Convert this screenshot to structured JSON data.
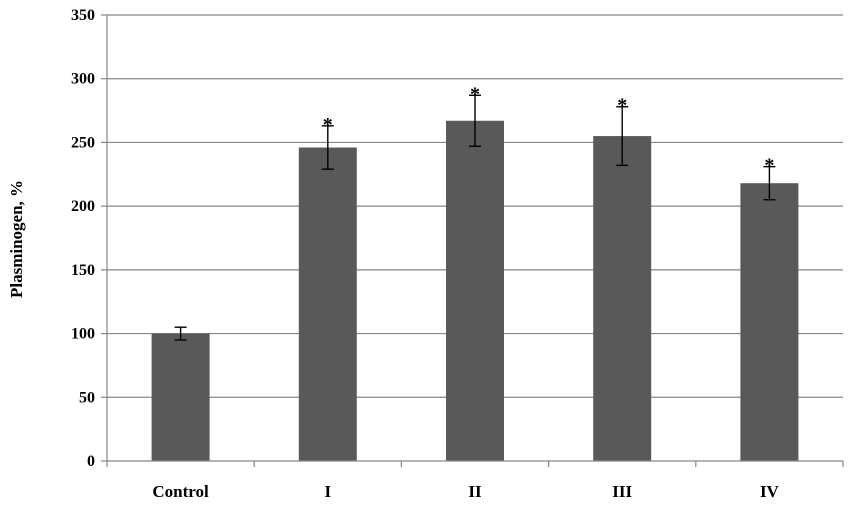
{
  "chart_data": {
    "type": "bar",
    "title": "",
    "xlabel": "",
    "ylabel": "Plasminogen, %",
    "ylim": [
      0,
      350
    ],
    "yticks": [
      0,
      50,
      100,
      150,
      200,
      250,
      300,
      350
    ],
    "ytick_labels": [
      "0",
      "50",
      "100",
      "150",
      "200",
      "250",
      "300",
      "350"
    ],
    "grid": true,
    "bar_color": "#595959",
    "categories": [
      "Control",
      "I",
      "II",
      "III",
      "IV"
    ],
    "values": [
      100,
      246,
      267,
      255,
      218
    ],
    "errors": [
      5,
      17,
      20,
      23,
      13
    ],
    "annotations": [
      "",
      "*",
      "*",
      "*",
      "*"
    ]
  }
}
